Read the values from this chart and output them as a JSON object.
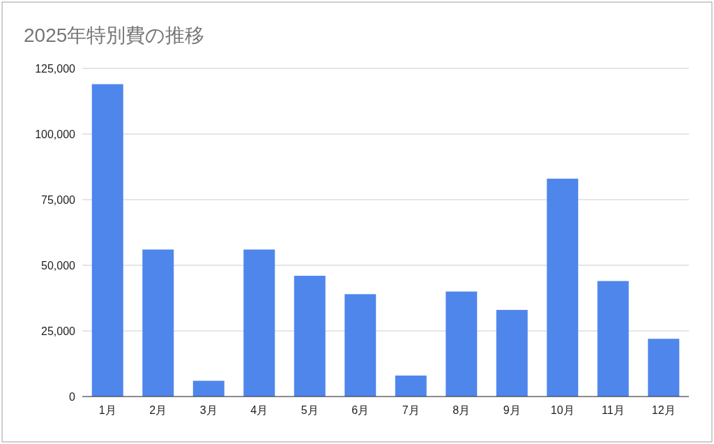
{
  "chart_data": {
    "type": "bar",
    "title": "2025年特別費の推移",
    "categories": [
      "1月",
      "2月",
      "3月",
      "4月",
      "5月",
      "6月",
      "7月",
      "8月",
      "9月",
      "10月",
      "11月",
      "12月"
    ],
    "values": [
      119000,
      56000,
      6000,
      56000,
      46000,
      39000,
      8000,
      40000,
      33000,
      83000,
      44000,
      22000
    ],
    "color": "#4f86ec",
    "ylim": [
      0,
      125000
    ],
    "yticks": [
      0,
      {
        "value": 25000,
        "label": "25,000"
      },
      {
        "value": 50000,
        "label": "50,000"
      },
      {
        "value": 75000,
        "label": "75,000"
      },
      {
        "value": 100000,
        "label": "100,000"
      },
      {
        "value": 125000,
        "label": "125,000"
      }
    ],
    "grid": "y"
  }
}
